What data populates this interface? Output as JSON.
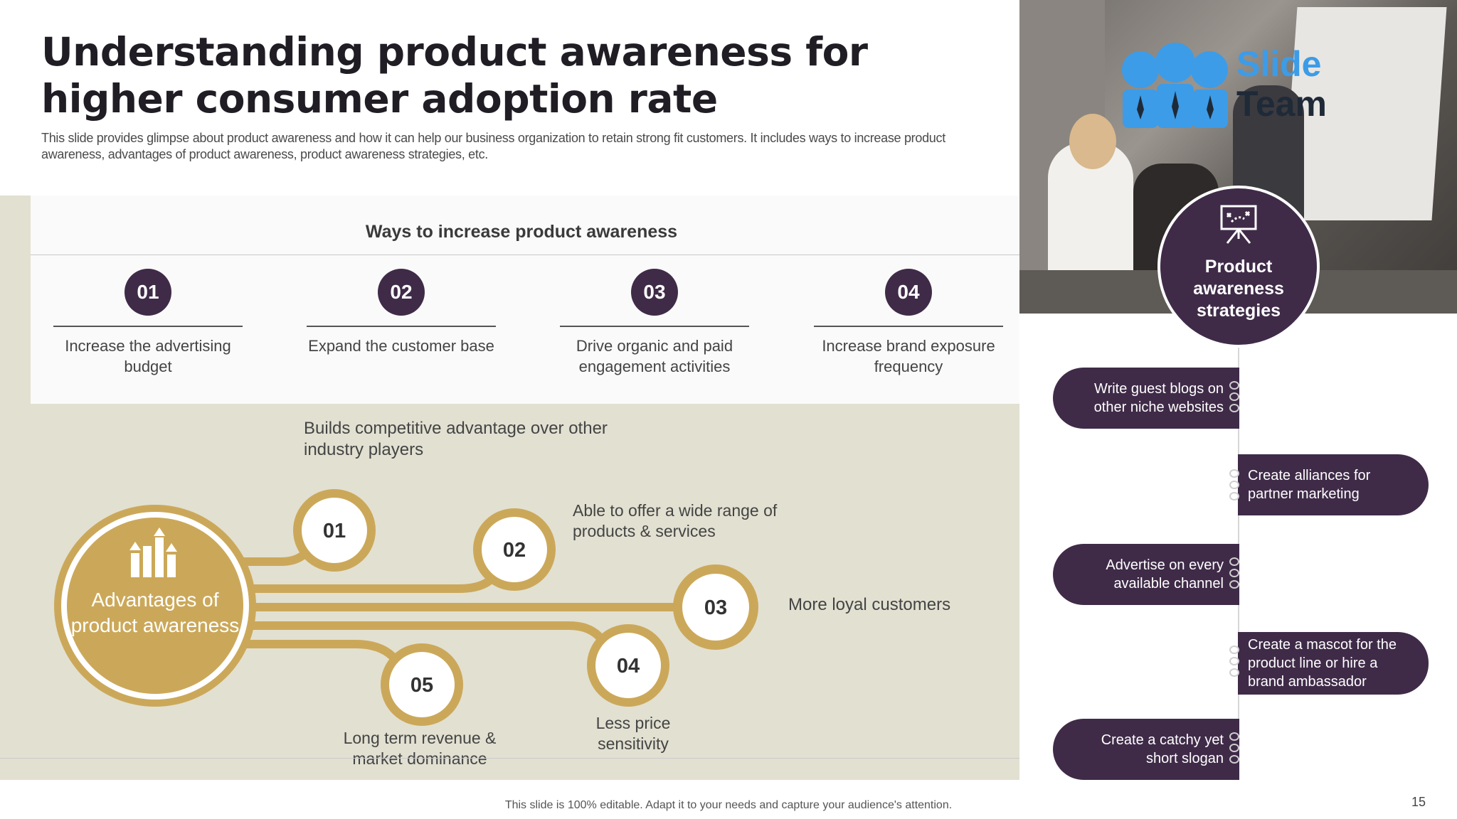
{
  "header": {
    "title": "Understanding product awareness for higher consumer adoption rate",
    "subtitle": "This slide provides glimpse about product awareness and how it can help our business organization to retain strong fit customers. It includes ways to increase product  awareness, advantages of product awareness, product awareness strategies, etc."
  },
  "ways": {
    "title": "Ways to increase product awareness",
    "items": [
      {
        "num": "01",
        "text": "Increase the advertising budget"
      },
      {
        "num": "02",
        "text": "Expand the customer base"
      },
      {
        "num": "03",
        "text": "Drive organic and paid engagement activities"
      },
      {
        "num": "04",
        "text": "Increase brand exposure frequency"
      }
    ]
  },
  "advantages": {
    "hub_label": "Advantages of product awareness",
    "hub_icon": "growth-bars-icon",
    "items": [
      {
        "num": "01",
        "text": "Builds competitive advantage over other industry players"
      },
      {
        "num": "02",
        "text": "Able to offer a wide range of products & services"
      },
      {
        "num": "03",
        "text": "More loyal customers"
      },
      {
        "num": "04",
        "text": "Less price sensitivity"
      },
      {
        "num": "05",
        "text": "Long term revenue & market dominance"
      }
    ],
    "accent_color": "#cba859"
  },
  "strategies": {
    "label": "Product awareness strategies",
    "icon": "presentation-board-icon",
    "items": [
      {
        "text": "Write guest blogs on other niche websites",
        "side": "left"
      },
      {
        "text": "Create alliances for partner marketing",
        "side": "right"
      },
      {
        "text": "Advertise on every available channel",
        "side": "left"
      },
      {
        "text": "Create a mascot for the product line or hire a brand ambassador",
        "side": "right"
      },
      {
        "text": "Create a catchy yet short slogan",
        "side": "left"
      }
    ],
    "pill_color": "#3f2b48"
  },
  "logo": {
    "line1": "Slide",
    "line2": "Team"
  },
  "footer": {
    "text": "This slide is 100% editable.  Adapt it to your needs and capture your audience's attention.",
    "page": "15"
  }
}
